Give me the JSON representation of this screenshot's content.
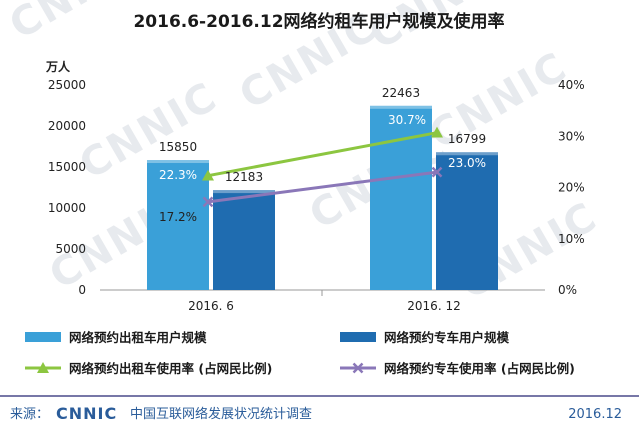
{
  "watermark": "CNNIC",
  "footer": {
    "source_label": "来源：",
    "brand": "CNNIC",
    "source_text": "中国互联网络发展状况统计调查",
    "date": "2016.12"
  },
  "colors": {
    "bar1": "#3aa0d8",
    "bar2": "#1f6cb0",
    "line1": "#8cc640",
    "line2": "#8a77b8",
    "footer": "#2a5c9a",
    "rule": "#4a4a8a"
  },
  "chart_data": {
    "type": "bar",
    "title": "2016.6-2016.12网络约租车用户规模及使用率",
    "ylabel_left": "万人",
    "ylim_left": [
      0,
      25000
    ],
    "yticks_left": [
      "0",
      "5000",
      "10000",
      "15000",
      "20000",
      "25000"
    ],
    "ylim_right": [
      0,
      40
    ],
    "yticks_right": [
      "0%",
      "10%",
      "20%",
      "30%",
      "40%"
    ],
    "categories": [
      "2016. 6",
      "2016. 12"
    ],
    "series": [
      {
        "name": "网络预约出租车用户规模",
        "kind": "bar",
        "axis": "left",
        "values": [
          15850,
          22463
        ],
        "labels": [
          "15850",
          "22463"
        ]
      },
      {
        "name": "网络预约专车用户规模",
        "kind": "bar",
        "axis": "left",
        "values": [
          12183,
          16799
        ],
        "labels": [
          "12183",
          "16799"
        ]
      },
      {
        "name": "网络预约出租车使用率 (占网民比例)",
        "kind": "line",
        "axis": "right",
        "marker": "triangle",
        "values": [
          22.3,
          30.7
        ],
        "labels": [
          "22.3%",
          "30.7%"
        ]
      },
      {
        "name": "网络预约专车使用率 (占网民比例)",
        "kind": "line",
        "axis": "right",
        "marker": "x",
        "values": [
          17.2,
          23.0
        ],
        "labels": [
          "17.2%",
          "23.0%"
        ]
      }
    ],
    "grid": false,
    "legend": "bottom"
  }
}
